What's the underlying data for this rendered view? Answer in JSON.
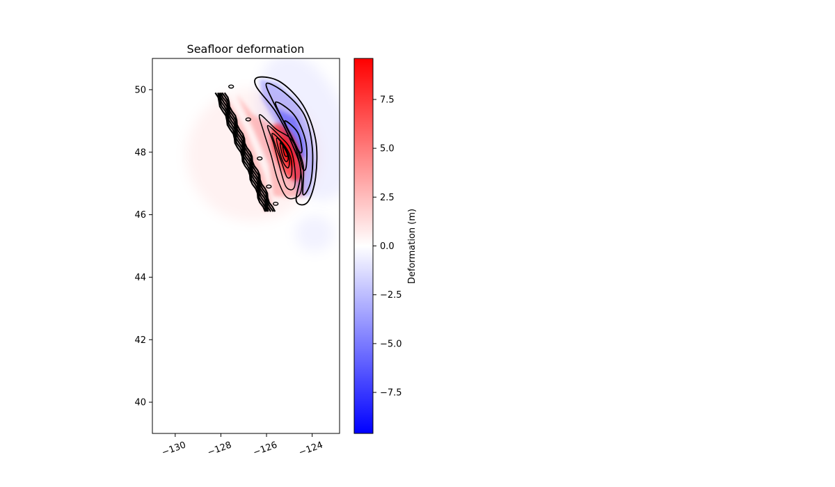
{
  "chart_data": {
    "type": "heatmap",
    "title": "Seafloor deformation",
    "xlabel": "",
    "ylabel": "",
    "xlim": [
      -131,
      -122.8
    ],
    "ylim": [
      39,
      51
    ],
    "xticks": [
      -130,
      -128,
      -126,
      -124
    ],
    "xtick_labels": [
      "−130",
      "−128",
      "−126",
      "−124"
    ],
    "yticks": [
      40,
      42,
      44,
      46,
      48,
      50
    ],
    "ytick_labels": [
      "40",
      "42",
      "44",
      "46",
      "48",
      "50"
    ],
    "grid": false,
    "colorbar": {
      "label": "Deformation (m)",
      "range": [
        -9.6,
        9.6
      ],
      "ticks": [
        -7.5,
        -5.0,
        -2.5,
        0.0,
        2.5,
        5.0,
        7.5
      ],
      "tick_labels": [
        "−7.5",
        "−5.0",
        "−2.5",
        "0.0",
        "2.5",
        "5.0",
        "7.5"
      ],
      "colormap": "bwr",
      "colors": {
        "low": "#0000ff",
        "mid": "#ffffff",
        "high": "#ff0000"
      }
    },
    "features": {
      "uplift_peak": {
        "lon": -125.1,
        "lat": 48.0,
        "value": 9.3
      },
      "subsidence_trough": {
        "lon": -124.6,
        "lat": 48.3,
        "value": -3.3
      },
      "uplift_zone": {
        "lon": [
          -126.2,
          -124.5
        ],
        "lat": [
          46.3,
          49.3
        ],
        "contour_levels": [
          0.8,
          2.0,
          3.3,
          4.7,
          6.1,
          7.5,
          8.7
        ]
      },
      "subsidence_zone": {
        "lon": [
          -126.4,
          -123.8
        ],
        "lat": [
          46.4,
          50.4
        ],
        "contour_levels": [
          -0.5,
          -1.3,
          -2.2,
          -3.0
        ]
      },
      "western_band": {
        "lon": [
          -128.1,
          -126.0
        ],
        "lat": [
          46.1,
          49.9
        ]
      }
    }
  }
}
